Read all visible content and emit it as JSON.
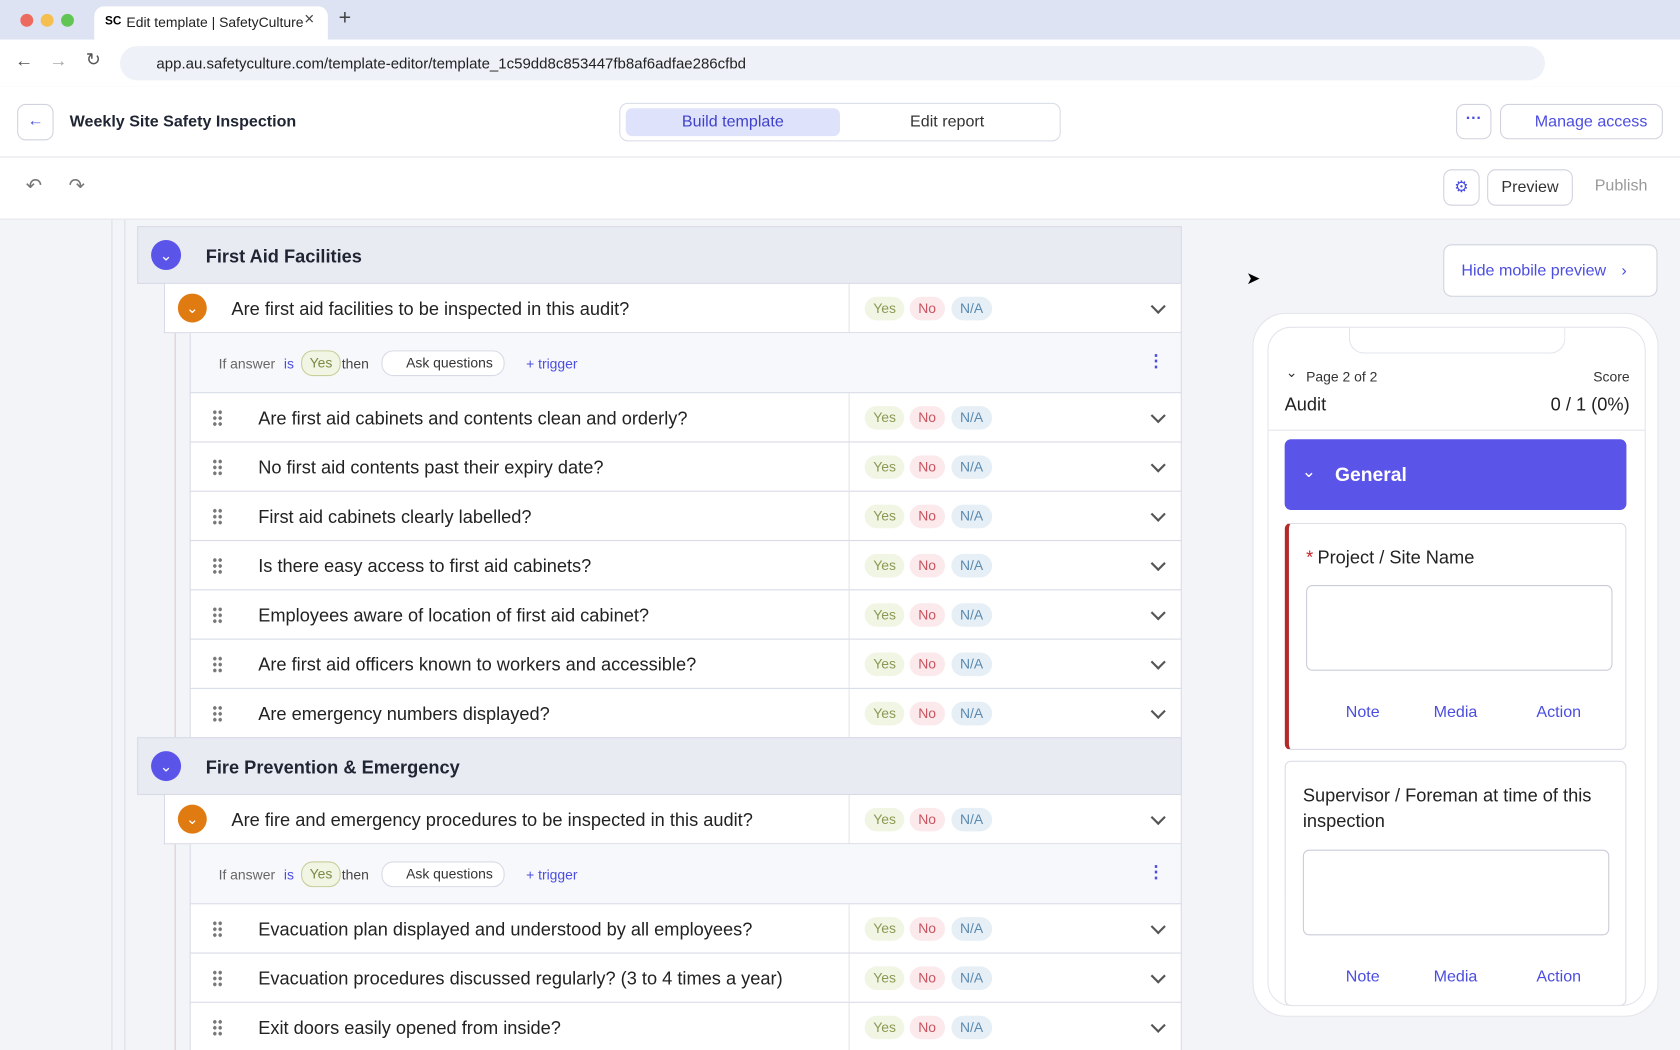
{
  "browser": {
    "tab_title": "Edit template | SafetyCulture",
    "url": "app.au.safetyculture.com/template-editor/template_1c59dd8c853447fb8af6adfae286cfbd"
  },
  "header": {
    "title": "Weekly Site Safety Inspection",
    "tabs": [
      "Build template",
      "Edit report"
    ],
    "manage_access": "Manage access"
  },
  "toolbar": {
    "preview": "Preview",
    "publish": "Publish"
  },
  "responses": [
    "Yes",
    "No",
    "N/A"
  ],
  "sections": [
    {
      "title": "First Aid Facilities",
      "gate": "Are first aid facilities to be inspected in this audit?",
      "logic": {
        "prefix": "If answer",
        "is": "is",
        "answer": "Yes",
        "then": "then",
        "action": "Ask questions",
        "trigger": "+ trigger"
      },
      "questions": [
        "Are first aid cabinets and contents clean and orderly?",
        "No first aid contents past their expiry date?",
        "First aid cabinets clearly labelled?",
        "Is there easy access to first aid cabinets?",
        "Employees aware of location of first aid cabinet?",
        "Are first aid officers known to workers and accessible?",
        "Are emergency numbers displayed?"
      ]
    },
    {
      "title": "Fire Prevention & Emergency",
      "gate": "Are fire and emergency procedures to be inspected in this audit?",
      "logic": {
        "prefix": "If answer",
        "is": "is",
        "answer": "Yes",
        "then": "then",
        "action": "Ask questions",
        "trigger": "+ trigger"
      },
      "questions": [
        "Evacuation plan displayed and understood by all employees?",
        "Evacuation procedures discussed regularly? (3 to 4 times a year)",
        "Exit doors easily opened from inside?"
      ]
    }
  ],
  "mobile": {
    "hide": "Hide mobile preview",
    "page": "Page 2 of 2",
    "score_label": "Score",
    "audit": "Audit",
    "score": "0 / 1 (0%)",
    "section": "General",
    "fields": [
      {
        "required": "*",
        "label": "Project / Site Name"
      },
      {
        "label": "Supervisor / Foreman at time of this inspection"
      }
    ],
    "actions": [
      "Note",
      "Media",
      "Action"
    ]
  }
}
